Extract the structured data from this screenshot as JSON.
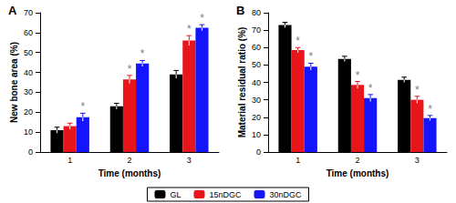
{
  "chart_data": [
    {
      "type": "bar",
      "title": "A",
      "x_label": "Time (months)",
      "y_label": "New bone area (%)",
      "categories": [
        "1",
        "2",
        "3"
      ],
      "series": [
        {
          "name": "GL",
          "color": "#000000",
          "values": [
            11,
            23,
            39
          ],
          "errors": [
            1.5,
            1.5,
            2
          ],
          "annotations": [
            null,
            null,
            null
          ]
        },
        {
          "name": "15nDGC",
          "color": "#e8161b",
          "values": [
            13,
            36.5,
            56
          ],
          "errors": [
            1.5,
            2,
            2.5
          ],
          "annotations": [
            null,
            "*",
            "*"
          ]
        },
        {
          "name": "30nDGC",
          "color": "#1414ff",
          "values": [
            17.5,
            44.5,
            62.5
          ],
          "errors": [
            2,
            1.5,
            1.5
          ],
          "annotations": [
            "*",
            "*",
            "*"
          ]
        }
      ],
      "ylim": [
        0,
        70
      ],
      "yticks": [
        0,
        10,
        20,
        30,
        40,
        50,
        60,
        70
      ],
      "grid": false,
      "legend": "bottom"
    },
    {
      "type": "bar",
      "title": "B",
      "x_label": "Time (months)",
      "y_label": "Material residual ratio (%)",
      "categories": [
        "1",
        "2",
        "3"
      ],
      "series": [
        {
          "name": "GL",
          "color": "#000000",
          "values": [
            73,
            53.5,
            41.5
          ],
          "errors": [
            1.5,
            1.5,
            1.5
          ],
          "annotations": [
            null,
            null,
            null
          ]
        },
        {
          "name": "15nDGC",
          "color": "#e8161b",
          "values": [
            58.5,
            38.5,
            30
          ],
          "errors": [
            1.5,
            2,
            2
          ],
          "annotations": [
            "*",
            "*",
            "*"
          ]
        },
        {
          "name": "30nDGC",
          "color": "#1414ff",
          "values": [
            49,
            31,
            19.5
          ],
          "errors": [
            2,
            2,
            1.5
          ],
          "annotations": [
            "*",
            "*",
            "*"
          ]
        }
      ],
      "ylim": [
        0,
        80
      ],
      "yticks": [
        0,
        10,
        20,
        30,
        40,
        50,
        60,
        70,
        80
      ],
      "grid": false,
      "legend": "bottom"
    }
  ]
}
